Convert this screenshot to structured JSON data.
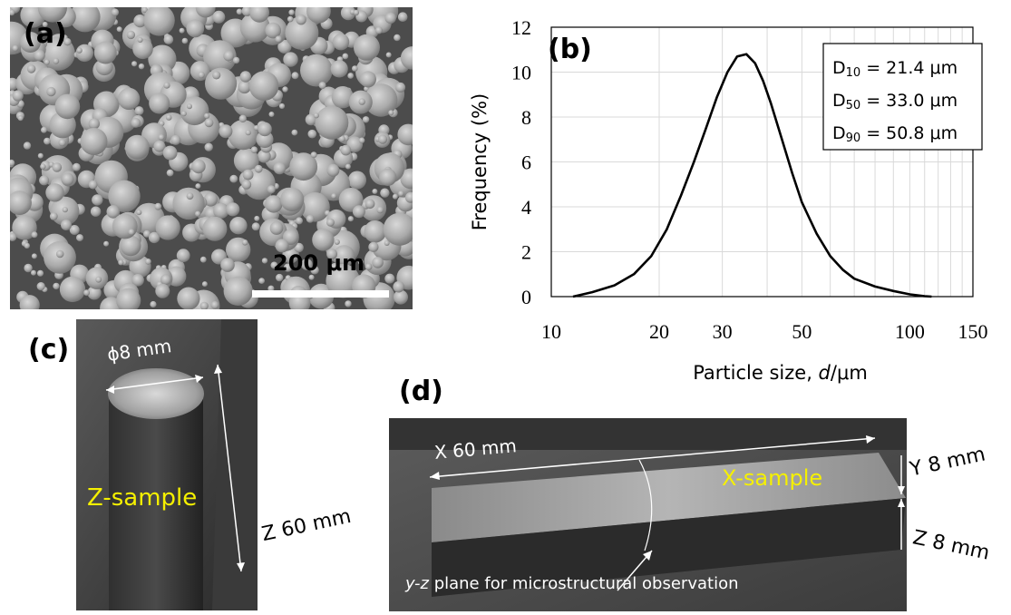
{
  "panels": {
    "a": {
      "label": "(a)",
      "scale_bar": "200 μm"
    },
    "b": {
      "label": "(b)"
    },
    "c": {
      "label": "(c)",
      "diameter": "ϕ8 mm",
      "sample_name": "Z-sample",
      "length": "Z 60 mm"
    },
    "d": {
      "label": "(d)",
      "length": "X 60 mm",
      "sample_name": "X-sample",
      "width": "Y 8 mm",
      "height": "Z 8 mm",
      "plane_italic": "y-z",
      "plane_text": " plane for microstructural observation"
    }
  },
  "colors": {
    "sample_label": "#f5f000",
    "curve": "#000000",
    "grid": "#d9d9d9"
  },
  "chart_data": {
    "type": "line",
    "xscale": "log",
    "xlim": [
      10,
      150
    ],
    "ylim": [
      0,
      12
    ],
    "xticks": [
      10,
      20,
      30,
      50,
      100,
      150
    ],
    "xtick_labels": [
      "10",
      "20",
      "30",
      "50",
      "100",
      "150"
    ],
    "yticks": [
      0,
      2,
      4,
      6,
      8,
      10,
      12
    ],
    "ytick_labels": [
      "0",
      "2",
      "4",
      "6",
      "8",
      "10",
      "12"
    ],
    "xlabel_prefix": "Particle size, ",
    "xlabel_var": "d",
    "xlabel_unit": "/μm",
    "ylabel": "Frequency (%)",
    "grid": true,
    "legend_box": {
      "placement": "top-right",
      "lines": [
        {
          "sym": "D",
          "sub": "10",
          "rest": " = 21.4 μm"
        },
        {
          "sym": "D",
          "sub": "50",
          "rest": " = 33.0 μm"
        },
        {
          "sym": "D",
          "sub": "90",
          "rest": " = 50.8 μm"
        }
      ]
    },
    "x": [
      11.5,
      13,
      15,
      17,
      19,
      21,
      23,
      25,
      27,
      29,
      31,
      33,
      35,
      37,
      39,
      41,
      44,
      47,
      50,
      55,
      60,
      65,
      70,
      80,
      90,
      100,
      110,
      115
    ],
    "y": [
      0,
      0.2,
      0.5,
      1.0,
      1.8,
      3.0,
      4.5,
      6.0,
      7.5,
      8.9,
      10.0,
      10.7,
      10.8,
      10.4,
      9.6,
      8.6,
      7.0,
      5.5,
      4.2,
      2.8,
      1.8,
      1.2,
      0.8,
      0.45,
      0.25,
      0.1,
      0.02,
      0
    ]
  }
}
